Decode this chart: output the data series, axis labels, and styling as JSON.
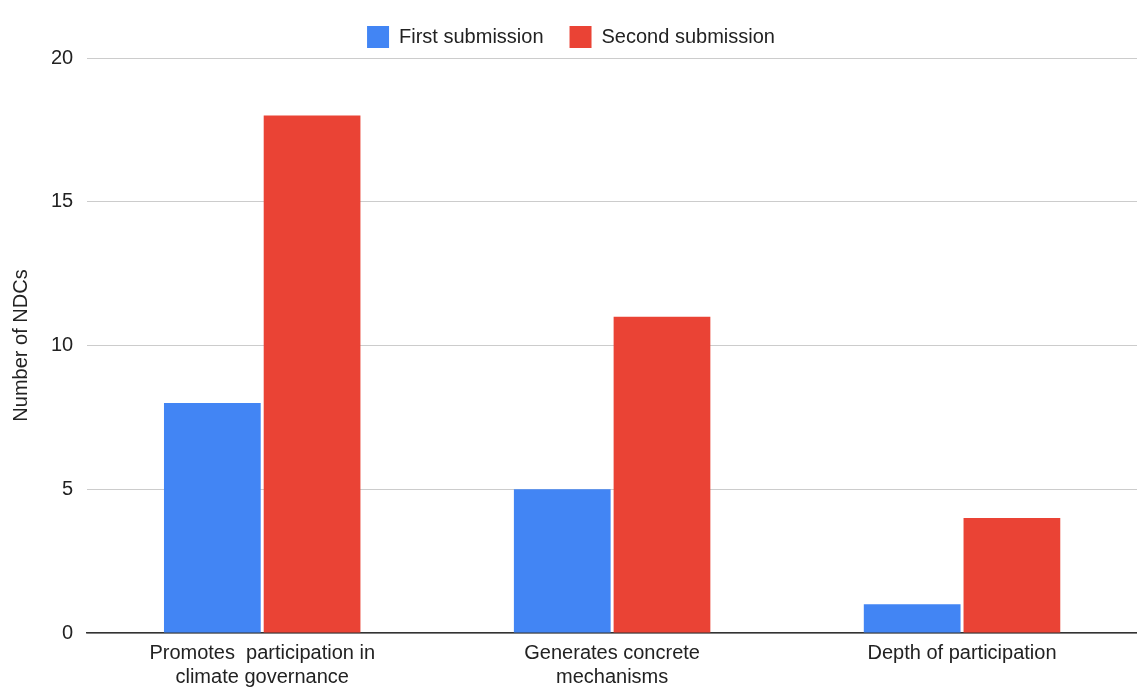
{
  "chart_data": {
    "type": "bar",
    "ylabel": "Number of NDCs",
    "categories": [
      "Promotes  participation in climate governance",
      "Generates concrete mechanisms",
      "Depth of participation"
    ],
    "series": [
      {
        "name": "First submission",
        "color": "#4285f4",
        "values": [
          8,
          5,
          1
        ]
      },
      {
        "name": "Second submission",
        "color": "#ea4335",
        "values": [
          18,
          11,
          4
        ]
      }
    ],
    "ylim": [
      0,
      20
    ],
    "yticks": [
      0,
      5,
      10,
      15,
      20
    ],
    "grid": "y",
    "legend": "top"
  }
}
